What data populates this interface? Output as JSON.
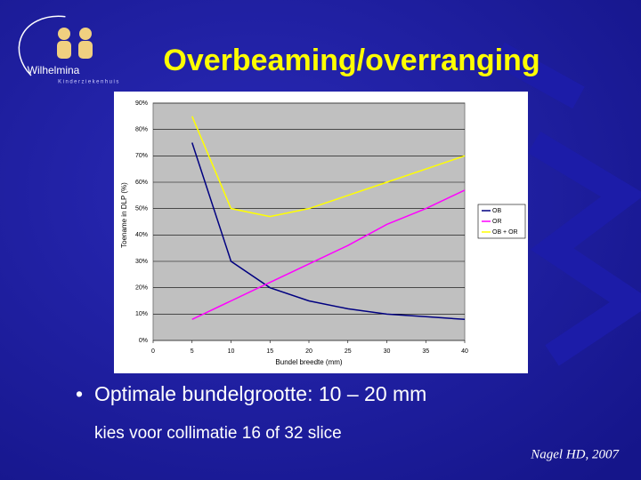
{
  "slide": {
    "title": "Overbeaming/overranging",
    "logo": "Wilhelmina",
    "logo_sub": "Kinderziekenhuis",
    "bullet": "Optimale bundelgrootte: 10 – 20 mm",
    "subtext": "kies voor collimatie 16 of 32 slice",
    "credit": "Nagel HD, 2007"
  },
  "chart_data": {
    "type": "line",
    "x_label": "Bundel breedte (mm)",
    "y_label": "Toename in DLP (%)",
    "x": [
      5,
      10,
      15,
      20,
      25,
      30,
      35,
      40
    ],
    "series": [
      {
        "name": "OB",
        "color": "#000080",
        "values": [
          75,
          30,
          20,
          15,
          12,
          10,
          9,
          8
        ]
      },
      {
        "name": "OR",
        "color": "#ff00ff",
        "values": [
          8,
          15,
          22,
          29,
          36,
          44,
          50,
          57
        ]
      },
      {
        "name": "OB + OR",
        "color": "#ffff00",
        "values": [
          85,
          50,
          47,
          50,
          55,
          60,
          65,
          70
        ]
      }
    ],
    "xlim": [
      0,
      40
    ],
    "xticks": [
      0,
      5,
      10,
      15,
      20,
      25,
      30,
      35,
      40
    ],
    "ylim": [
      0,
      90
    ],
    "yticks": [
      {
        "value": 0,
        "label": "0%"
      },
      {
        "value": 10,
        "label": "10%"
      },
      {
        "value": 20,
        "label": "20%"
      },
      {
        "value": 30,
        "label": "30%"
      },
      {
        "value": 40,
        "label": "40%"
      },
      {
        "value": 50,
        "label": "50%"
      },
      {
        "value": 60,
        "label": "60%"
      },
      {
        "value": 70,
        "label": "70%"
      },
      {
        "value": 80,
        "label": "80%"
      },
      {
        "value": 90,
        "label": "90%"
      }
    ],
    "grid": true,
    "legend": "right"
  }
}
